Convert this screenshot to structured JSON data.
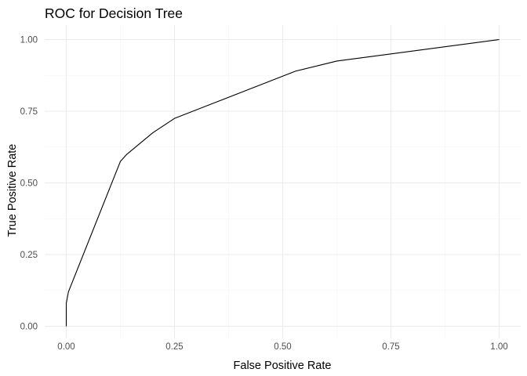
{
  "chart_data": {
    "type": "line",
    "title": "ROC for Decision Tree",
    "xlabel": "False Positive Rate",
    "ylabel": "True Positive Rate",
    "xlim": [
      0,
      1
    ],
    "ylim": [
      0,
      1
    ],
    "x_ticks": [
      "0.00",
      "0.25",
      "0.50",
      "0.75",
      "1.00"
    ],
    "y_ticks": [
      "0.00",
      "0.25",
      "0.50",
      "0.75",
      "1.00"
    ],
    "grid": true,
    "legend": "none",
    "series": [
      {
        "color": "#000000",
        "x": [
          0.0,
          0.0,
          0.005,
          0.125,
          0.14,
          0.2,
          0.25,
          0.53,
          0.625,
          1.0
        ],
        "y": [
          0.0,
          0.08,
          0.12,
          0.575,
          0.6,
          0.675,
          0.725,
          0.89,
          0.925,
          1.0
        ]
      }
    ]
  }
}
